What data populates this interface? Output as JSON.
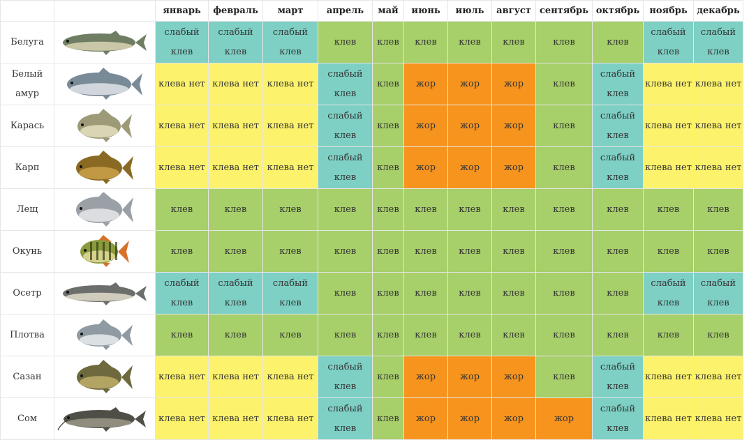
{
  "months": [
    "январь",
    "февраль",
    "март",
    "апрель",
    "май",
    "июнь",
    "июль",
    "август",
    "сентябрь",
    "октябрь",
    "ноябрь",
    "декабрь"
  ],
  "labels": {
    "g": "клев",
    "y": "клева нет",
    "t": "слабый клев",
    "o": "жор"
  },
  "colors": {
    "g": "#a7cf6a",
    "y": "#fcf26c",
    "t": "#7ecfc4",
    "o": "#f7941d"
  },
  "fish": [
    {
      "name": "Белуга",
      "icon": "beluga-icon",
      "codes": [
        "t",
        "t",
        "t",
        "g",
        "g",
        "g",
        "g",
        "g",
        "g",
        "g",
        "t",
        "t"
      ]
    },
    {
      "name": "Белый амур",
      "icon": "grass-carp-icon",
      "codes": [
        "y",
        "y",
        "y",
        "t",
        "g",
        "o",
        "o",
        "o",
        "g",
        "t",
        "y",
        "y"
      ]
    },
    {
      "name": "Карась",
      "icon": "crucian-icon",
      "codes": [
        "y",
        "y",
        "y",
        "t",
        "g",
        "o",
        "o",
        "o",
        "g",
        "t",
        "y",
        "y"
      ]
    },
    {
      "name": "Карп",
      "icon": "carp-icon",
      "codes": [
        "y",
        "y",
        "y",
        "t",
        "g",
        "o",
        "o",
        "o",
        "g",
        "t",
        "y",
        "y"
      ]
    },
    {
      "name": "Лещ",
      "icon": "bream-icon",
      "codes": [
        "g",
        "g",
        "g",
        "g",
        "g",
        "g",
        "g",
        "g",
        "g",
        "g",
        "g",
        "g"
      ]
    },
    {
      "name": "Окунь",
      "icon": "perch-icon",
      "codes": [
        "g",
        "g",
        "g",
        "g",
        "g",
        "g",
        "g",
        "g",
        "g",
        "g",
        "g",
        "g"
      ]
    },
    {
      "name": "Осетр",
      "icon": "sturgeon-icon",
      "codes": [
        "t",
        "t",
        "t",
        "g",
        "g",
        "g",
        "g",
        "g",
        "g",
        "g",
        "t",
        "t"
      ]
    },
    {
      "name": "Плотва",
      "icon": "roach-icon",
      "codes": [
        "g",
        "g",
        "g",
        "g",
        "g",
        "g",
        "g",
        "g",
        "g",
        "g",
        "g",
        "g"
      ]
    },
    {
      "name": "Сазан",
      "icon": "wild-carp-icon",
      "codes": [
        "y",
        "y",
        "y",
        "t",
        "g",
        "o",
        "o",
        "o",
        "g",
        "t",
        "y",
        "y"
      ]
    },
    {
      "name": "Сом",
      "icon": "catfish-icon",
      "codes": [
        "y",
        "y",
        "y",
        "t",
        "g",
        "o",
        "o",
        "o",
        "o",
        "t",
        "y",
        "y"
      ]
    }
  ]
}
